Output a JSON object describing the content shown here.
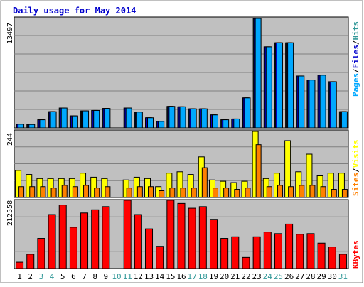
{
  "title": "Daily usage for May 2014",
  "colors": {
    "background": "#ffffff",
    "plot_bg": "#c0c0c0",
    "grid": "#808080",
    "title": "#0000cc",
    "pages": "#00a8ff",
    "files": "#0000cc",
    "hits": "#339999",
    "sites": "#ff8000",
    "visits": "#ffff00",
    "kbytes": "#ff0000",
    "weekend_label": "#339999",
    "weekday_label": "#000000"
  },
  "labels": {
    "top_left": "13497",
    "mid_left": "244",
    "bottom_left": "212558",
    "right_pages": "Pages",
    "right_files": "Files",
    "right_hits": "Hits",
    "right_sites": "Sites",
    "right_visits": "Visits",
    "right_kbytes": "KBytes",
    "slash": "/"
  },
  "chart_data": {
    "type": "bar",
    "title": "Daily usage for May 2014",
    "categories": [
      "1",
      "2",
      "3",
      "4",
      "5",
      "6",
      "7",
      "8",
      "9",
      "10",
      "11",
      "12",
      "13",
      "14",
      "15",
      "16",
      "17",
      "18",
      "19",
      "20",
      "21",
      "22",
      "23",
      "24",
      "25",
      "26",
      "27",
      "28",
      "29",
      "30",
      "31"
    ],
    "weekend_days": [
      3,
      4,
      10,
      11,
      17,
      18,
      24,
      25,
      31
    ],
    "panels": [
      {
        "name": "hits_files_pages",
        "ylim": [
          0,
          13497
        ],
        "series": [
          {
            "name": "Hits",
            "values": [
              450,
              420,
              1000,
              2000,
              2450,
              1480,
              2100,
              2150,
              2400,
              null,
              2450,
              1950,
              1250,
              800,
              2650,
              2600,
              2350,
              2350,
              1600,
              1000,
              1100,
              3700,
              13497,
              10000,
              10500,
              10500,
              6400,
              5900,
              6500,
              5700,
              2000
            ]
          },
          {
            "name": "Files",
            "values": [
              450,
              420,
              1000,
              2000,
              2450,
              1480,
              2100,
              2150,
              2400,
              null,
              2450,
              1950,
              1250,
              800,
              2650,
              2600,
              2350,
              2350,
              1600,
              1000,
              1100,
              3700,
              13497,
              10000,
              10500,
              10500,
              6400,
              5900,
              6500,
              5700,
              2000
            ]
          },
          {
            "name": "Pages",
            "values": [
              450,
              420,
              1000,
              2000,
              2450,
              1480,
              2100,
              2150,
              2400,
              null,
              2450,
              1950,
              1250,
              800,
              2650,
              2600,
              2350,
              2350,
              1600,
              1000,
              1100,
              3700,
              13497,
              10000,
              10500,
              10500,
              6400,
              5900,
              6500,
              5700,
              2000
            ]
          }
        ]
      },
      {
        "name": "visits_sites",
        "ylim": [
          0,
          244
        ],
        "series": [
          {
            "name": "Visits",
            "values": [
              100,
              85,
              70,
              70,
              70,
              70,
              90,
              75,
              70,
              null,
              65,
              75,
              70,
              40,
              90,
              95,
              85,
              150,
              65,
              60,
              55,
              60,
              244,
              70,
              90,
              210,
              95,
              160,
              80,
              90,
              90
            ]
          },
          {
            "name": "Sites",
            "values": [
              40,
              40,
              40,
              35,
              45,
              40,
              45,
              35,
              40,
              null,
              35,
              40,
              40,
              25,
              35,
              35,
              35,
              110,
              35,
              35,
              30,
              35,
              195,
              40,
              45,
              40,
              45,
              45,
              40,
              30,
              30
            ]
          }
        ]
      },
      {
        "name": "kbytes",
        "ylim": [
          0,
          212558
        ],
        "series": [
          {
            "name": "KBytes",
            "values": [
              20000,
              45000,
              95000,
              170000,
              200000,
              130000,
              175000,
              185000,
              195000,
              null,
              215000,
              170000,
              125000,
              70000,
              215000,
              205000,
              190000,
              195000,
              155000,
              95000,
              100000,
              35000,
              100000,
              115000,
              110000,
              140000,
              108000,
              110000,
              80000,
              68000,
              45000
            ]
          }
        ]
      }
    ]
  }
}
